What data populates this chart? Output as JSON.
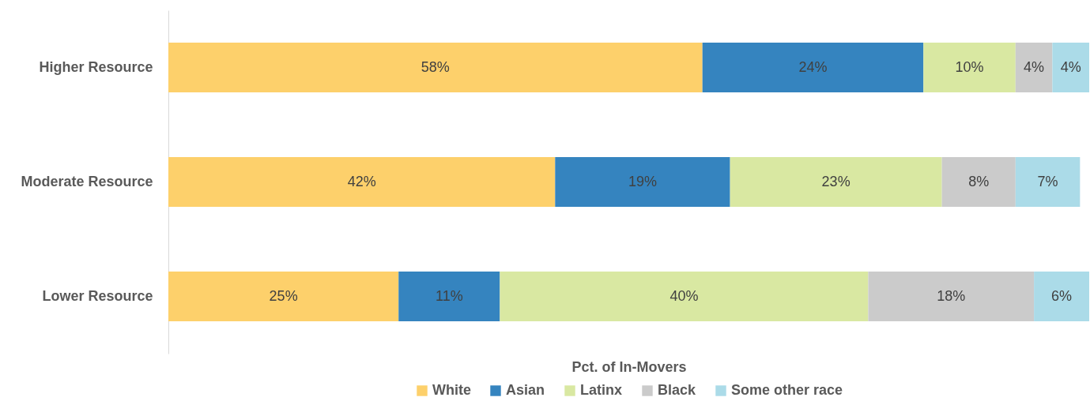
{
  "chart_data": {
    "type": "bar",
    "orientation": "horizontal",
    "stacked": true,
    "xlabel": "Pct. of In-Movers",
    "categories": [
      "Higher Resource",
      "Moderate Resource",
      "Lower Resource"
    ],
    "xlim": [
      0,
      100
    ],
    "tick_labels": "y",
    "legend": "bottom",
    "series": [
      {
        "name": "White",
        "color": "#fdd06b",
        "values": [
          58,
          42,
          25
        ],
        "value_labels": [
          "58%",
          "42%",
          "25%"
        ]
      },
      {
        "name": "Asian",
        "color": "#3584bf",
        "values": [
          24,
          19,
          11
        ],
        "value_labels": [
          "24%",
          "19%",
          "11%"
        ]
      },
      {
        "name": "Latinx",
        "color": "#d9e8a2",
        "values": [
          10,
          23,
          40
        ],
        "value_labels": [
          "10%",
          "23%",
          "40%"
        ]
      },
      {
        "name": "Black",
        "color": "#cbcbcb",
        "values": [
          4,
          8,
          18
        ],
        "value_labels": [
          "4%",
          "8%",
          "18%"
        ]
      },
      {
        "name": "Some other race",
        "color": "#abdbe8",
        "values": [
          4,
          7,
          6
        ],
        "value_labels": [
          "4%",
          "7%",
          "6%"
        ]
      }
    ]
  }
}
